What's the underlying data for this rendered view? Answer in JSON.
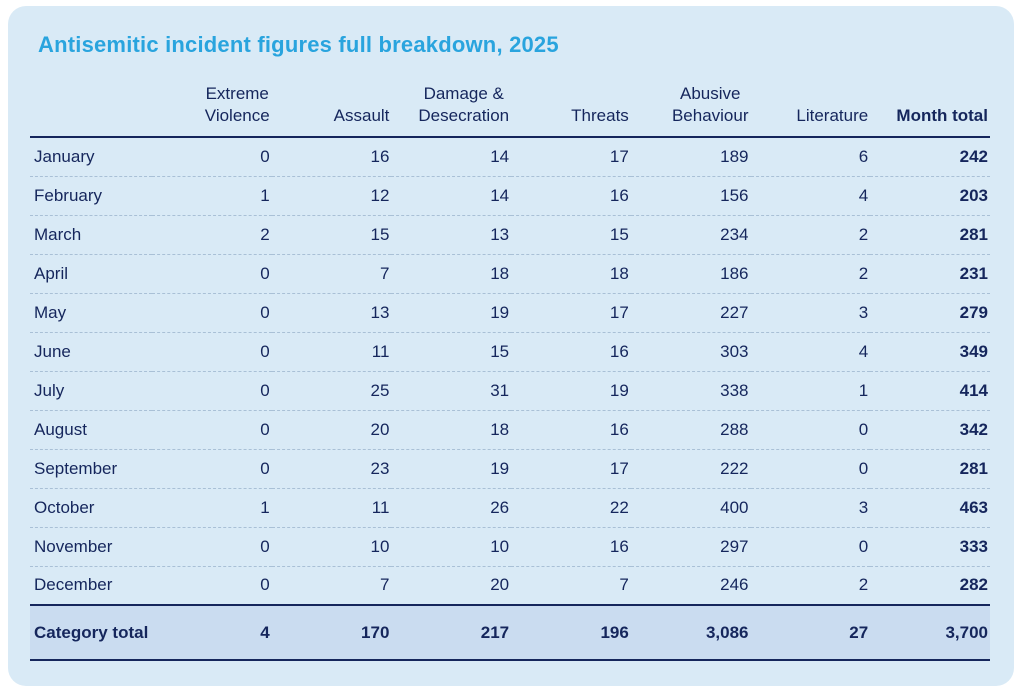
{
  "page": {
    "title": "Antisemitic incident figures full breakdown, 2025"
  },
  "colors": {
    "card_bg": "#d9eaf6",
    "band_bg": "#cadcf0",
    "navy": "#15265c",
    "title_blue": "#29a4de",
    "dash": "#a9c0d6",
    "page_bg": "#ffffff"
  },
  "chart_data": {
    "type": "table",
    "title": "Antisemitic incident figures full breakdown, 2025",
    "columns": [
      {
        "label": "Extreme Violence",
        "lines": [
          "Extreme",
          "Violence"
        ],
        "bold": false
      },
      {
        "label": "Assault",
        "lines": [
          "Assault"
        ],
        "bold": false
      },
      {
        "label": "Damage & Desecration",
        "lines": [
          "Damage &",
          "Desecration"
        ],
        "bold": false
      },
      {
        "label": "Threats",
        "lines": [
          "Threats"
        ],
        "bold": false
      },
      {
        "label": "Abusive Behaviour",
        "lines": [
          "Abusive",
          "Behaviour"
        ],
        "bold": false
      },
      {
        "label": "Literature",
        "lines": [
          "Literature"
        ],
        "bold": false
      },
      {
        "label": "Month total",
        "lines": [
          "Month total"
        ],
        "bold": true
      }
    ],
    "rows": [
      {
        "month": "January",
        "values": [
          "0",
          "16",
          "14",
          "17",
          "189",
          "6"
        ],
        "total": "242"
      },
      {
        "month": "February",
        "values": [
          "1",
          "12",
          "14",
          "16",
          "156",
          "4"
        ],
        "total": "203"
      },
      {
        "month": "March",
        "values": [
          "2",
          "15",
          "13",
          "15",
          "234",
          "2"
        ],
        "total": "281"
      },
      {
        "month": "April",
        "values": [
          "0",
          "7",
          "18",
          "18",
          "186",
          "2"
        ],
        "total": "231"
      },
      {
        "month": "May",
        "values": [
          "0",
          "13",
          "19",
          "17",
          "227",
          "3"
        ],
        "total": "279"
      },
      {
        "month": "June",
        "values": [
          "0",
          "11",
          "15",
          "16",
          "303",
          "4"
        ],
        "total": "349"
      },
      {
        "month": "July",
        "values": [
          "0",
          "25",
          "31",
          "19",
          "338",
          "1"
        ],
        "total": "414"
      },
      {
        "month": "August",
        "values": [
          "0",
          "20",
          "18",
          "16",
          "288",
          "0"
        ],
        "total": "342"
      },
      {
        "month": "September",
        "values": [
          "0",
          "23",
          "19",
          "17",
          "222",
          "0"
        ],
        "total": "281"
      },
      {
        "month": "October",
        "values": [
          "1",
          "11",
          "26",
          "22",
          "400",
          "3"
        ],
        "total": "463"
      },
      {
        "month": "November",
        "values": [
          "0",
          "10",
          "10",
          "16",
          "297",
          "0"
        ],
        "total": "333"
      },
      {
        "month": "December",
        "values": [
          "0",
          "7",
          "20",
          "7",
          "246",
          "2"
        ],
        "total": "282"
      }
    ],
    "total_row": {
      "label": "Category total",
      "values": [
        "4",
        "170",
        "217",
        "196",
        "3,086",
        "27"
      ],
      "total": "3,700"
    }
  }
}
